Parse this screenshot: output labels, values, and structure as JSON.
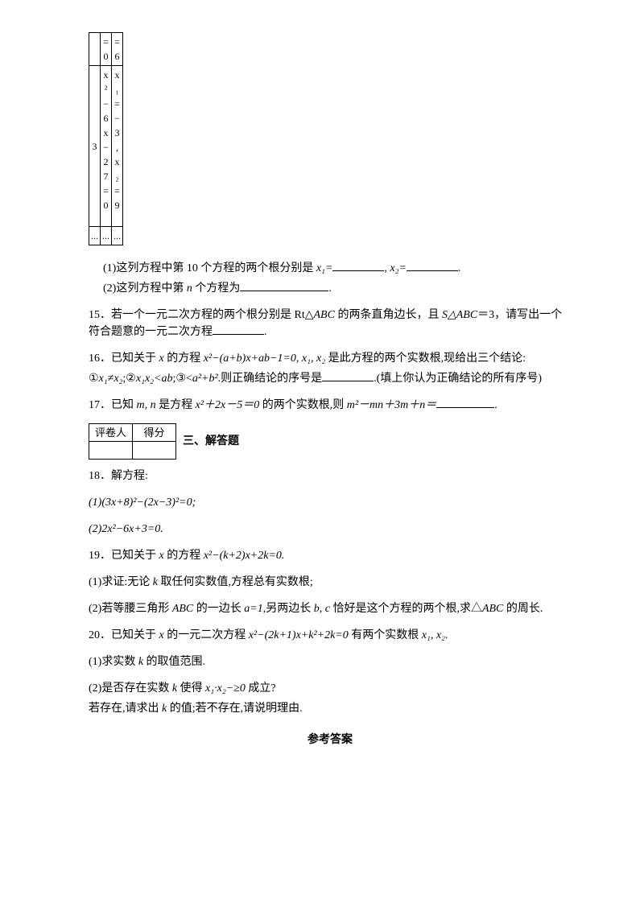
{
  "minitable": {
    "r1c2": "=\n0",
    "r1c3": "=\n6",
    "r2c1": "3",
    "r2c2": "x\n²\n−\n6\nx\n−\n2\n7\n=\n0",
    "r2c3": "x\n₁\n=\n−\n3\n,\nx\n₂\n=\n9",
    "r3c1": "...",
    "r3c2": "...",
    "r3c3": "..."
  },
  "q14": {
    "line1_a": "(1)这列方程中第 10 个方程的两个根分别是 ",
    "line1_b": "x₁=",
    "line1_c": ", x₂=",
    "line1_d": ".",
    "line2_a": "(2)这列方程中第 ",
    "line2_b": "n",
    "line2_c": " 个方程为",
    "line2_d": "."
  },
  "q15": {
    "a": "15．若一个一元二次方程的两个根分别是 Rt△",
    "abc": "ABC",
    "b": " 的两条直角边长，且 ",
    "sabc": "S△ABC",
    "c": "＝3，请写出一个符合题意的一元二次方程",
    "d": "."
  },
  "q16": {
    "a": "16．已知关于 ",
    "x": "x",
    "b": " 的方程 ",
    "eq": "x²−(a+b)x+ab−1=0, x₁, x₂",
    "c": " 是此方程的两个实数根,现给出三个结论:",
    "line2_a": "①",
    "opt1": "x₁≠x₂",
    "sep1": ";②",
    "opt2": "x₁x₂<ab",
    "sep2": ";③<",
    "opt3": "a²+b²",
    "line2_b": ".则正确结论的序号是",
    "line2_c": ".(填上你认为正确结论的所有序号)"
  },
  "q17": {
    "a": "17．已知 ",
    "mn": "m, n",
    "b": " 是方程 ",
    "eq": "x²＋2x－5＝0",
    "c": " 的两个实数根,则 ",
    "expr": "m²－mn＋3m＋n＝",
    "d": "."
  },
  "score": {
    "h1": "评卷人",
    "h2": "得分"
  },
  "section3": "三、解答题",
  "q18": {
    "head": "18．解方程:",
    "p1": "(1)(3x+8)²−(2x−3)²=0;",
    "p2": "(2)2x²−6x+3=0."
  },
  "q19": {
    "head_a": "19．已知关于 ",
    "head_b": " 的方程 ",
    "eq": "x²−(k+2)x+2k=0.",
    "p1_a": "(1)求证:无论 ",
    "p1_k": "k",
    "p1_b": " 取任何实数值,方程总有实数根;",
    "p2_a": "(2)若等腰三角形 ",
    "p2_abc": "ABC",
    "p2_b": " 的一边长 ",
    "p2_eq": "a=1",
    "p2_c": ",另两边长 ",
    "p2_bc": "b, c",
    "p2_d": " 恰好是这个方程的两个根,求△",
    "p2_e": " 的周长."
  },
  "q20": {
    "head_a": "20．已知关于 ",
    "head_b": " 的一元二次方程 ",
    "eq": "x²−(2k+1)x+k²+2k=0",
    "head_c": " 有两个实数根 ",
    "roots": "x₁, x₂",
    "head_d": ".",
    "p1_a": "(1)求实数 ",
    "p1_b": " 的取值范围.",
    "p2_a": "(2)是否存在实数 ",
    "p2_b": " 使得 ",
    "p2_expr": "x₁·x₂−≥0",
    "p2_c": " 成立?",
    "p2_line2_a": "若存在,请求出 ",
    "p2_line2_b": " 的值;若不存在,请说明理由."
  },
  "answer": "参考答案"
}
